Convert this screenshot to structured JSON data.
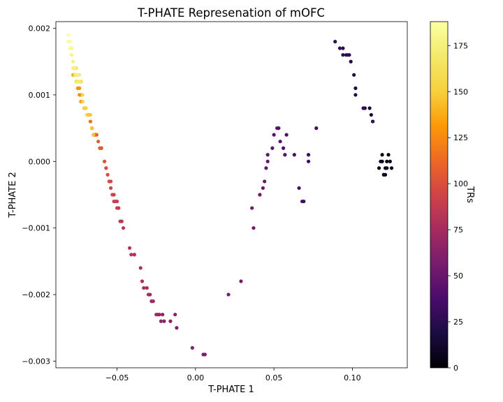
{
  "chart_data": {
    "type": "scatter",
    "title": "T-PHATE Represenation of mOFC",
    "xlabel": "T-PHATE 1",
    "ylabel": "T-PHATE 2",
    "xlim": [
      -0.089,
      0.135
    ],
    "ylim": [
      -0.0031,
      0.0021
    ],
    "x_ticks": [
      -0.05,
      0.0,
      0.05,
      0.1
    ],
    "x_tick_labels": [
      "−0.05",
      "0.00",
      "0.05",
      "0.10"
    ],
    "y_ticks": [
      -0.003,
      -0.002,
      -0.001,
      0.0,
      0.001,
      0.002
    ],
    "y_tick_labels": [
      "−0.003",
      "−0.002",
      "−0.001",
      "0.000",
      "0.001",
      "0.002"
    ],
    "grid": false,
    "colorbar": {
      "label": "TRs",
      "colormap": "inferno",
      "range": [
        0,
        188
      ],
      "ticks": [
        0,
        25,
        50,
        75,
        100,
        125,
        150,
        175
      ],
      "tick_labels": [
        "0",
        "25",
        "50",
        "75",
        "100",
        "125",
        "150",
        "175"
      ]
    },
    "points": [
      [
        0.121,
        -0.0001,
        0
      ],
      [
        0.119,
        0.0,
        1
      ],
      [
        0.124,
        0.0,
        2
      ],
      [
        0.122,
        0.0,
        3
      ],
      [
        0.117,
        -0.0001,
        4
      ],
      [
        0.123,
        0.0001,
        5
      ],
      [
        0.12,
        -0.0002,
        6
      ],
      [
        0.125,
        -0.0001,
        7
      ],
      [
        0.119,
        0.0001,
        8
      ],
      [
        0.121,
        -0.0002,
        9
      ],
      [
        0.118,
        -0.0,
        10
      ],
      [
        0.122,
        -0.0001,
        11
      ],
      [
        0.124,
        0.0,
        12
      ],
      [
        0.12,
        -0.0002,
        13
      ],
      [
        0.113,
        0.0006,
        14
      ],
      [
        0.112,
        0.0007,
        15
      ],
      [
        0.108,
        0.0008,
        16
      ],
      [
        0.107,
        0.0008,
        17
      ],
      [
        0.111,
        0.0008,
        18
      ],
      [
        0.102,
        0.001,
        19
      ],
      [
        0.102,
        0.0011,
        20
      ],
      [
        0.101,
        0.0013,
        21
      ],
      [
        0.099,
        0.0015,
        22
      ],
      [
        0.098,
        0.0016,
        23
      ],
      [
        0.096,
        0.0016,
        24
      ],
      [
        0.094,
        0.0017,
        25
      ],
      [
        0.094,
        0.0016,
        26
      ],
      [
        0.097,
        0.0016,
        27
      ],
      [
        0.092,
        0.0017,
        28
      ],
      [
        0.089,
        0.0018,
        29
      ],
      [
        0.107,
        0.0008,
        30
      ],
      [
        0.113,
        0.0006,
        31
      ],
      [
        0.072,
        0.0001,
        32
      ],
      [
        0.072,
        0.0,
        33
      ],
      [
        0.077,
        0.0005,
        34
      ],
      [
        0.069,
        -0.0006,
        35
      ],
      [
        0.068,
        -0.0006,
        36
      ],
      [
        0.066,
        -0.0004,
        37
      ],
      [
        0.063,
        0.0001,
        38
      ],
      [
        0.058,
        0.0004,
        39
      ],
      [
        0.056,
        0.0002,
        40
      ],
      [
        0.057,
        0.0001,
        41
      ],
      [
        0.053,
        0.0005,
        42
      ],
      [
        0.054,
        0.0003,
        43
      ],
      [
        0.052,
        0.0005,
        44
      ],
      [
        0.05,
        0.0004,
        45
      ],
      [
        0.049,
        0.0002,
        46
      ],
      [
        0.046,
        0.0001,
        47
      ],
      [
        0.046,
        0.0,
        48
      ],
      [
        0.045,
        -0.0001,
        49
      ],
      [
        0.044,
        -0.0003,
        50
      ],
      [
        0.043,
        -0.0004,
        51
      ],
      [
        0.041,
        -0.0005,
        52
      ],
      [
        0.036,
        -0.0007,
        53
      ],
      [
        0.037,
        -0.001,
        54
      ],
      [
        0.029,
        -0.0018,
        55
      ],
      [
        0.021,
        -0.002,
        56
      ],
      [
        0.006,
        -0.0029,
        57
      ],
      [
        0.005,
        -0.0029,
        58
      ],
      [
        0.006,
        -0.0029,
        59
      ],
      [
        0.005,
        -0.0029,
        60
      ],
      [
        -0.002,
        -0.0028,
        61
      ],
      [
        -0.012,
        -0.0025,
        62
      ],
      [
        -0.013,
        -0.0023,
        63
      ],
      [
        -0.016,
        -0.0024,
        64
      ],
      [
        -0.02,
        -0.0024,
        65
      ],
      [
        -0.021,
        -0.0023,
        66
      ],
      [
        -0.022,
        -0.0024,
        67
      ],
      [
        -0.023,
        -0.0023,
        68
      ],
      [
        -0.024,
        -0.0023,
        69
      ],
      [
        -0.025,
        -0.0023,
        70
      ],
      [
        -0.027,
        -0.0021,
        71
      ],
      [
        -0.028,
        -0.0021,
        72
      ],
      [
        -0.028,
        -0.0021,
        73
      ],
      [
        -0.029,
        -0.002,
        74
      ],
      [
        -0.03,
        -0.002,
        75
      ],
      [
        -0.031,
        -0.0019,
        76
      ],
      [
        -0.033,
        -0.0019,
        77
      ],
      [
        -0.034,
        -0.0018,
        78
      ],
      [
        -0.035,
        -0.0016,
        79
      ],
      [
        -0.039,
        -0.0014,
        80
      ],
      [
        -0.039,
        -0.0014,
        81
      ],
      [
        -0.041,
        -0.0014,
        82
      ],
      [
        -0.042,
        -0.0013,
        83
      ],
      [
        -0.046,
        -0.001,
        84
      ],
      [
        -0.047,
        -0.0009,
        85
      ],
      [
        -0.048,
        -0.0009,
        86
      ],
      [
        -0.049,
        -0.0007,
        87
      ],
      [
        -0.05,
        -0.0007,
        88
      ],
      [
        -0.05,
        -0.0006,
        89
      ],
      [
        -0.051,
        -0.0006,
        90
      ],
      [
        -0.052,
        -0.0006,
        91
      ],
      [
        -0.052,
        -0.0005,
        92
      ],
      [
        -0.053,
        -0.0005,
        93
      ],
      [
        -0.054,
        -0.0004,
        94
      ],
      [
        -0.054,
        -0.0003,
        95
      ],
      [
        -0.055,
        -0.0003,
        96
      ],
      [
        -0.055,
        -0.0003,
        97
      ],
      [
        -0.056,
        -0.0002,
        98
      ],
      [
        -0.057,
        -0.0001,
        99
      ],
      [
        -0.057,
        -0.0001,
        100
      ],
      [
        -0.057,
        -0.0001,
        101
      ],
      [
        -0.058,
        -0.0,
        102
      ],
      [
        -0.058,
        -0.0,
        103
      ],
      [
        -0.06,
        0.0002,
        104
      ],
      [
        -0.06,
        0.0002,
        105
      ],
      [
        -0.061,
        0.0002,
        106
      ],
      [
        -0.062,
        0.0003,
        107
      ],
      [
        -0.063,
        0.0004,
        108
      ],
      [
        -0.064,
        0.0004,
        109
      ],
      [
        -0.064,
        0.0004,
        110
      ],
      [
        -0.065,
        0.0004,
        111
      ],
      [
        -0.066,
        0.0005,
        112
      ],
      [
        -0.066,
        0.0005,
        113
      ],
      [
        -0.067,
        0.0006,
        114
      ],
      [
        -0.067,
        0.0006,
        115
      ],
      [
        -0.068,
        0.0007,
        116
      ],
      [
        -0.068,
        0.0007,
        117
      ],
      [
        -0.069,
        0.0007,
        118
      ],
      [
        -0.07,
        0.0008,
        119
      ],
      [
        -0.07,
        0.0008,
        120
      ],
      [
        -0.071,
        0.0008,
        121
      ],
      [
        -0.071,
        0.0008,
        122
      ],
      [
        -0.072,
        0.0009,
        123
      ],
      [
        -0.073,
        0.0009,
        124
      ],
      [
        -0.073,
        0.001,
        125
      ],
      [
        -0.074,
        0.001,
        126
      ],
      [
        -0.074,
        0.0011,
        127
      ],
      [
        -0.075,
        0.0011,
        128
      ],
      [
        -0.075,
        0.0011,
        129
      ],
      [
        -0.076,
        0.0012,
        130
      ],
      [
        -0.076,
        0.0012,
        131
      ],
      [
        -0.077,
        0.0013,
        132
      ],
      [
        -0.077,
        0.0013,
        133
      ],
      [
        -0.078,
        0.0013,
        134
      ],
      [
        -0.078,
        0.0013,
        135
      ],
      [
        -0.075,
        0.0012,
        136
      ],
      [
        -0.075,
        0.0012,
        137
      ],
      [
        -0.076,
        0.0012,
        138
      ],
      [
        -0.076,
        0.0012,
        139
      ],
      [
        -0.077,
        0.0013,
        140
      ],
      [
        -0.077,
        0.0013,
        141
      ],
      [
        -0.077,
        0.0014,
        142
      ],
      [
        -0.078,
        0.0014,
        143
      ],
      [
        -0.078,
        0.0014,
        144
      ],
      [
        -0.065,
        0.0004,
        145
      ],
      [
        -0.066,
        0.0005,
        146
      ],
      [
        -0.067,
        0.0007,
        147
      ],
      [
        -0.068,
        0.0007,
        148
      ],
      [
        -0.069,
        0.0007,
        149
      ],
      [
        -0.07,
        0.0008,
        150
      ],
      [
        -0.071,
        0.0008,
        151
      ],
      [
        -0.071,
        0.0008,
        152
      ],
      [
        -0.072,
        0.0009,
        153
      ],
      [
        -0.072,
        0.001,
        154
      ],
      [
        -0.073,
        0.0012,
        155
      ],
      [
        -0.073,
        0.0012,
        156
      ],
      [
        -0.074,
        0.0012,
        157
      ],
      [
        -0.075,
        0.0012,
        158
      ],
      [
        -0.076,
        0.0012,
        159
      ],
      [
        -0.076,
        0.0013,
        160
      ],
      [
        -0.076,
        0.0014,
        161
      ],
      [
        -0.077,
        0.0014,
        162
      ],
      [
        -0.078,
        0.0014,
        163
      ],
      [
        -0.078,
        0.0014,
        164
      ],
      [
        -0.077,
        0.0013,
        165
      ],
      [
        -0.076,
        0.0012,
        166
      ],
      [
        -0.076,
        0.0012,
        167
      ],
      [
        -0.075,
        0.0012,
        168
      ],
      [
        -0.074,
        0.0012,
        169
      ],
      [
        -0.074,
        0.0012,
        170
      ],
      [
        -0.075,
        0.0012,
        171
      ],
      [
        -0.074,
        0.0013,
        172
      ],
      [
        -0.075,
        0.0013,
        173
      ],
      [
        -0.076,
        0.0013,
        174
      ],
      [
        -0.077,
        0.0014,
        175
      ],
      [
        -0.078,
        0.0014,
        176
      ],
      [
        -0.078,
        0.0015,
        177
      ],
      [
        -0.079,
        0.0016,
        178
      ],
      [
        -0.079,
        0.0016,
        179
      ],
      [
        -0.079,
        0.0017,
        180
      ],
      [
        -0.079,
        0.0017,
        181
      ],
      [
        -0.08,
        0.0017,
        182
      ],
      [
        -0.08,
        0.0017,
        183
      ],
      [
        -0.08,
        0.0018,
        184
      ],
      [
        -0.081,
        0.0018,
        185
      ],
      [
        -0.081,
        0.0019,
        186
      ],
      [
        -0.081,
        0.0019,
        187
      ]
    ]
  }
}
